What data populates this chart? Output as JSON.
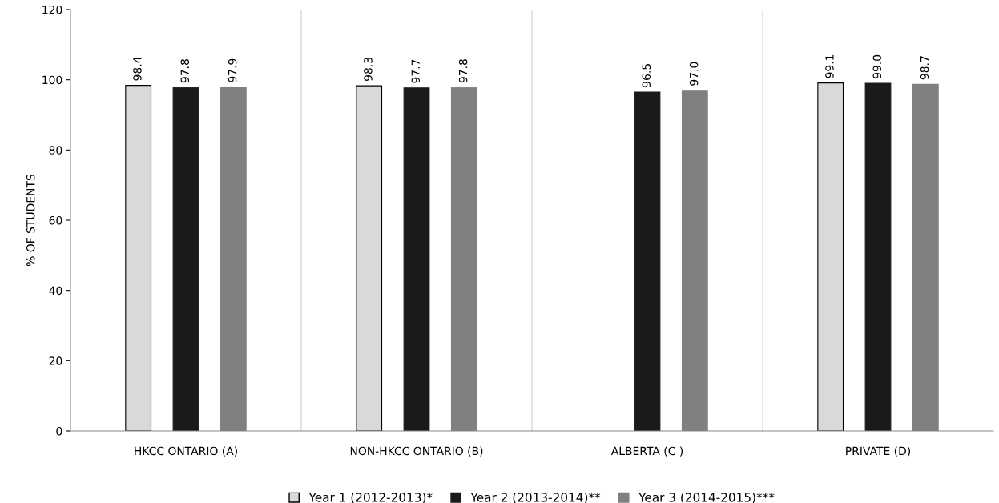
{
  "chart_data": {
    "type": "bar",
    "ylabel": "% OF STUDENTS",
    "categories": [
      "HKCC ONTARIO (A)",
      "NON-HKCC ONTARIO (B)",
      "ALBERTA (C )",
      "PRIVATE (D)"
    ],
    "series": [
      {
        "name": "Year 1 (2012-2013)*",
        "color": "#d9d9d9",
        "values": [
          98.4,
          98.3,
          null,
          99.1
        ],
        "value_labels": [
          "98.4",
          "98.3",
          null,
          "99.1"
        ]
      },
      {
        "name": "Year 2 (2013-2014)**",
        "color": "#1a1a1a",
        "values": [
          97.8,
          97.7,
          96.5,
          99.0
        ],
        "value_labels": [
          "97.8",
          "97.7",
          "96.5",
          "99.0"
        ]
      },
      {
        "name": "Year 3 (2014-2015)***",
        "color": "#808080",
        "values": [
          97.9,
          97.8,
          97.0,
          98.7
        ],
        "value_labels": [
          "97.9",
          "97.8",
          "97.0",
          "98.7"
        ]
      }
    ],
    "ylim": [
      0,
      120
    ],
    "yticks": [
      0,
      20,
      40,
      60,
      80,
      100,
      120
    ],
    "grid": "x",
    "legend": "bottom"
  }
}
